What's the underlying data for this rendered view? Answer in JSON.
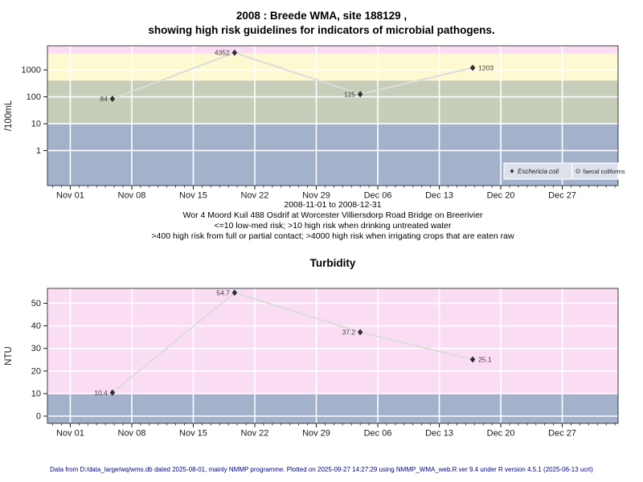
{
  "header": {
    "title_line1": "2008 : Breede WMA, site 188129 ,",
    "title_line2": "showing high risk guidelines for indicators of microbial pathogens."
  },
  "subtitle": {
    "line1": "2008-11-01 to 2008-12-31",
    "line2": "Wor 4 Moord Kuil 488 Osdrif at Worcester Villiersdorp Road Bridge on Breerivier",
    "line3": "<=10 low-med risk; >10 high risk when drinking untreated water",
    "line4": ">400 high risk from full or partial contact; >4000 high risk when irrigating crops that are eaten raw"
  },
  "footer": {
    "text": "Data from D:/data_large/wq/wms.db dated 2025-08-01, mainly NMMP programme. Plotted on 2025-09-27 14:27:29 using NMMP_WMA_web.R ver 9.4 under R version 4.5.1 (2025-06-13 ucrt)"
  },
  "x_axis": {
    "domain_days": [
      -2.6,
      62.35
    ],
    "major_ticks": [
      {
        "label": "Nov 01",
        "day": 0
      },
      {
        "label": "Nov 08",
        "day": 7
      },
      {
        "label": "Nov 15",
        "day": 14
      },
      {
        "label": "Nov 22",
        "day": 21
      },
      {
        "label": "Nov 29",
        "day": 28
      },
      {
        "label": "Dec 06",
        "day": 35
      },
      {
        "label": "Dec 13",
        "day": 42
      },
      {
        "label": "Dec 20",
        "day": 49
      },
      {
        "label": "Dec 27",
        "day": 56
      }
    ],
    "minor_tick_days": [
      -2,
      62
    ],
    "minor_step": 1
  },
  "chart_data": [
    {
      "id": "microbial-pathogens",
      "type": "line",
      "title": "",
      "ylabel": "/100mL",
      "yscale": "log",
      "ylim": [
        0.05,
        7900
      ],
      "yticks": [
        1,
        10,
        100,
        1000
      ],
      "ytick_labels": [
        "1",
        "10",
        "100",
        "1000"
      ],
      "grid": true,
      "bands": [
        {
          "from": 4000,
          "to": 7900,
          "color": "#FBDDF3"
        },
        {
          "from": 400,
          "to": 4000,
          "color": "#FDF9D0"
        },
        {
          "from": 10,
          "to": 400,
          "color": "#C6CEBA"
        },
        {
          "from": 0.05,
          "to": 10,
          "color": "#A3B1CB"
        }
      ],
      "series": [
        {
          "name": "Eschericia coli",
          "marker": "filled-diamond",
          "line_color": "#DCDCDC",
          "marker_color": "#2F2F2F",
          "points": [
            {
              "day": 4.8,
              "value": 84,
              "label": "84",
              "label_side": "left"
            },
            {
              "day": 18.7,
              "value": 4352,
              "label": "4352",
              "label_side": "left"
            },
            {
              "day": 33,
              "value": 125,
              "label": "125",
              "label_side": "left"
            },
            {
              "day": 45.8,
              "value": 1203,
              "label": "1203",
              "label_side": "right"
            }
          ]
        }
      ],
      "legend": {
        "position": "bottom-right",
        "bg": "#DCE1EC",
        "entries": [
          {
            "label": "Eschericia coli",
            "marker": "filled-diamond",
            "italic": true
          },
          {
            "label": "faecal coliforms",
            "marker": "open-circle",
            "italic": false
          }
        ]
      }
    },
    {
      "id": "turbidity",
      "type": "line",
      "title": "Turbidity",
      "ylabel": "NTU",
      "yscale": "linear",
      "ylim": [
        -3.2,
        56.6
      ],
      "yticks": [
        0,
        10,
        20,
        30,
        40,
        50
      ],
      "ytick_labels": [
        "0",
        "10",
        "20",
        "30",
        "40",
        "50"
      ],
      "grid": true,
      "bands": [
        {
          "from": 10,
          "to": 56.6,
          "color": "#FBDDF3"
        },
        {
          "from": -3.2,
          "to": 10,
          "color": "#A3B1CB"
        }
      ],
      "series": [
        {
          "name": "Turbidity",
          "marker": "filled-diamond",
          "line_color": "#DCDCDC",
          "marker_color": "#2F2F2F",
          "points": [
            {
              "day": 4.8,
              "value": 10.4,
              "label": "10.4",
              "label_side": "left"
            },
            {
              "day": 18.7,
              "value": 54.7,
              "label": "54.7",
              "label_side": "left"
            },
            {
              "day": 33,
              "value": 37.2,
              "label": "37.2",
              "label_side": "left"
            },
            {
              "day": 45.8,
              "value": 25.1,
              "label": "25.1",
              "label_side": "right"
            }
          ]
        }
      ],
      "legend": null
    }
  ],
  "colors": {
    "background": "#FFFFFF",
    "grid": "#FFFFFF",
    "plot_border": "#3F3F3F",
    "tick": "#1A1A1A",
    "tick_label": "#1A1A1A",
    "point_label": "#3C3C3C",
    "footer_text": "#000080"
  }
}
